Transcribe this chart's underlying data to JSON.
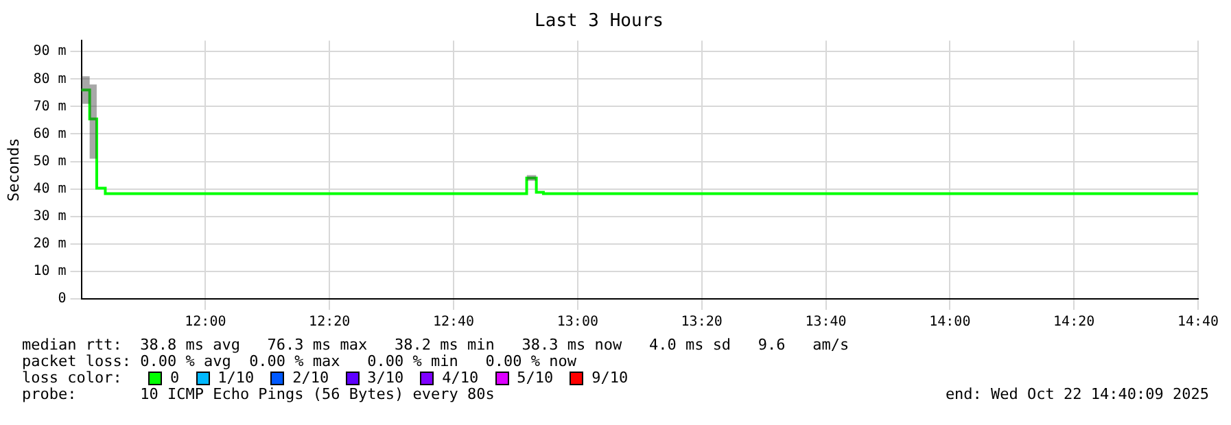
{
  "chart_data": {
    "type": "step",
    "title": "Last 3 Hours",
    "ylabel": "Seconds",
    "legend_title": "loss color:",
    "legend": "bottom",
    "grid": true,
    "x": [
      11.6667,
      11.689,
      11.708,
      11.731,
      12.863,
      12.889,
      12.908,
      14.6667
    ],
    "series": [
      {
        "name": "0",
        "color": "#00ff00",
        "values": [
          76,
          65.5,
          40.3,
          38.3,
          44,
          38.8,
          38.3,
          38.3
        ],
        "lower": [
          71,
          51,
          39,
          null,
          43,
          38.5,
          null,
          null
        ],
        "upper": [
          81,
          78,
          41,
          null,
          45,
          39.2,
          null,
          null
        ]
      },
      {
        "name": "1/10",
        "color": "#00b8ff",
        "values": [
          null,
          null,
          null,
          null,
          null,
          null,
          null,
          null
        ]
      },
      {
        "name": "2/10",
        "color": "#0059ff",
        "values": [
          null,
          null,
          null,
          null,
          null,
          null,
          null,
          null
        ]
      },
      {
        "name": "3/10",
        "color": "#5e00ff",
        "values": [
          null,
          null,
          null,
          null,
          null,
          null,
          null,
          null
        ]
      },
      {
        "name": "4/10",
        "color": "#7e00ff",
        "values": [
          null,
          null,
          null,
          null,
          null,
          null,
          null,
          null
        ]
      },
      {
        "name": "5/10",
        "color": "#dd00ff",
        "values": [
          null,
          null,
          null,
          null,
          null,
          null,
          null,
          null
        ]
      },
      {
        "name": "9/10",
        "color": "#ff0000",
        "values": [
          null,
          null,
          null,
          null,
          null,
          null,
          null,
          null
        ]
      }
    ],
    "xlim": [
      11.6667,
      14.6667
    ],
    "xticks": [
      {
        "value": 12,
        "label": "12:00"
      },
      {
        "value": 12.3333,
        "label": "12:20"
      },
      {
        "value": 12.6667,
        "label": "12:40"
      },
      {
        "value": 13,
        "label": "13:00"
      },
      {
        "value": 13.3333,
        "label": "13:20"
      },
      {
        "value": 13.6667,
        "label": "13:40"
      },
      {
        "value": 14,
        "label": "14:00"
      },
      {
        "value": 14.3333,
        "label": "14:20"
      },
      {
        "value": 14.6667,
        "label": "14:40"
      }
    ],
    "ylim": [
      0,
      94
    ],
    "yticks": [
      0,
      {
        "value": 10,
        "label": "10 m"
      },
      {
        "value": 20,
        "label": "20 m"
      },
      {
        "value": 30,
        "label": "30 m"
      },
      {
        "value": 40,
        "label": "40 m"
      },
      {
        "value": 50,
        "label": "50 m"
      },
      {
        "value": 60,
        "label": "60 m"
      },
      {
        "value": 70,
        "label": "70 m"
      },
      {
        "value": 80,
        "label": "80 m"
      },
      {
        "value": 90,
        "label": "90 m"
      }
    ],
    "annotations": [
      "median rtt:  38.8 ms avg   76.3 ms max   38.2 ms min   38.3 ms now   4.0 ms sd   9.6   am/s",
      "packet loss: 0.00 % avg  0.00 % max   0.00 % min   0.00 % now",
      "probe:       10 ICMP Echo Pings (56 Bytes) every 80s",
      "end: Wed Oct 22 14:40:09 2025"
    ]
  }
}
